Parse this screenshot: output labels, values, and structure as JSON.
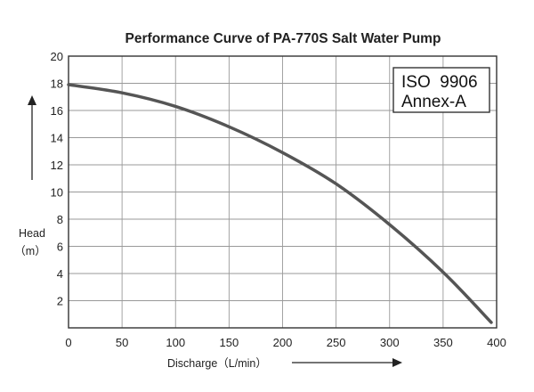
{
  "chart_data": {
    "type": "line",
    "title": "Performance Curve of PA-770S Salt Water Pump",
    "xlabel": "Discharge（L/min）",
    "ylabel_line1": "Head",
    "ylabel_line2": "（m）",
    "xlim": [
      0,
      400
    ],
    "ylim": [
      0,
      20
    ],
    "xticks": [
      0,
      50,
      100,
      150,
      200,
      250,
      300,
      350,
      400
    ],
    "yticks": [
      2,
      4,
      6,
      8,
      10,
      12,
      14,
      16,
      18,
      20
    ],
    "grid": true,
    "annotation": {
      "line1": "ISO  9906",
      "line2": "Annex-A"
    },
    "series": [
      {
        "x": [
          0,
          50,
          100,
          150,
          200,
          250,
          300,
          350,
          395
        ],
        "y": [
          17.9,
          17.3,
          16.3,
          14.8,
          12.9,
          10.6,
          7.6,
          4.1,
          0.4
        ]
      }
    ],
    "colors": {
      "curve": "#555555",
      "grid": "#999999",
      "frame": "#333333",
      "text": "#222222"
    }
  }
}
